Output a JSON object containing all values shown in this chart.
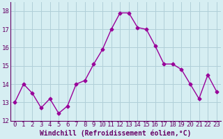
{
  "x": [
    0,
    1,
    2,
    3,
    4,
    5,
    6,
    7,
    8,
    9,
    10,
    11,
    12,
    13,
    14,
    15,
    16,
    17,
    18,
    19,
    20,
    21,
    22,
    23
  ],
  "y": [
    13.0,
    14.0,
    13.5,
    12.7,
    13.2,
    12.4,
    12.8,
    14.0,
    14.2,
    15.1,
    15.9,
    17.0,
    17.9,
    17.9,
    17.1,
    17.0,
    16.1,
    15.1,
    15.1,
    14.8,
    14.0,
    13.2,
    14.5,
    13.6
  ],
  "line_color": "#990099",
  "marker": "D",
  "marker_size": 2.5,
  "line_width": 1.0,
  "bg_color": "#d6eef2",
  "grid_color": "#b0cfd8",
  "xlabel": "Windchill (Refroidissement éolien,°C)",
  "xlabel_fontsize": 7,
  "tick_fontsize": 6.5,
  "ylim": [
    12,
    18.5
  ],
  "yticks": [
    12,
    13,
    14,
    15,
    16,
    17,
    18
  ],
  "xticks": [
    0,
    1,
    2,
    3,
    4,
    5,
    6,
    7,
    8,
    9,
    10,
    11,
    12,
    13,
    14,
    15,
    16,
    17,
    18,
    19,
    20,
    21,
    22,
    23
  ],
  "figure_width": 3.2,
  "figure_height": 2.0,
  "dpi": 100
}
